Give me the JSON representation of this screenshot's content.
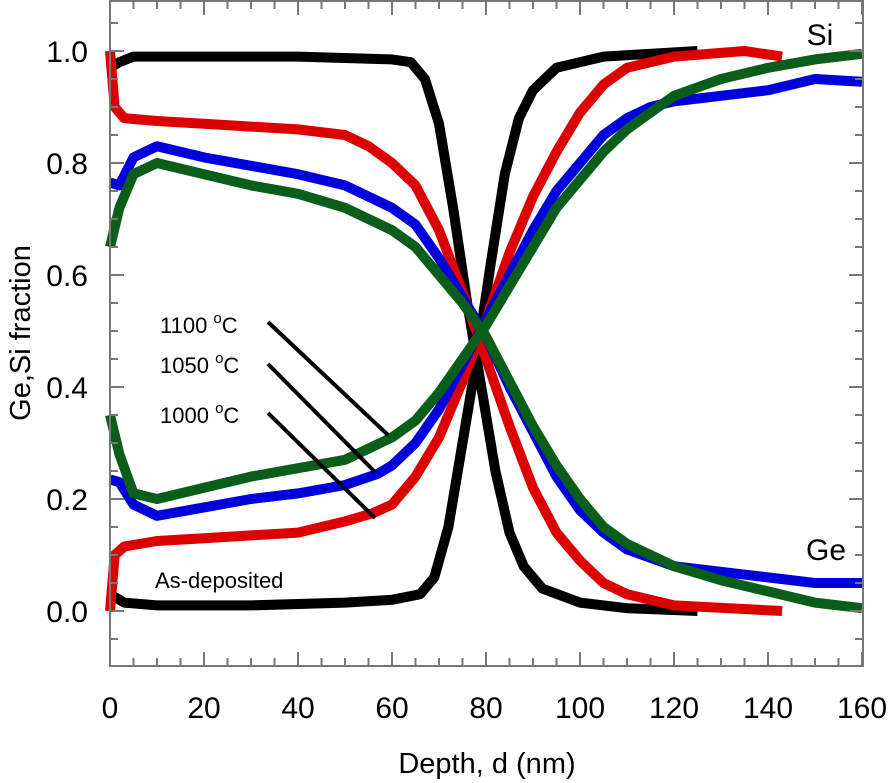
{
  "chart_data": {
    "type": "line",
    "title": "",
    "xlabel": "Depth, d (nm)",
    "ylabel": "Ge,Si fraction",
    "xlim": [
      0,
      160
    ],
    "ylim": [
      -0.1,
      1.1
    ],
    "xticks": [
      0,
      20,
      40,
      60,
      80,
      100,
      120,
      140,
      160
    ],
    "xtick_labels": [
      "0",
      "20",
      "40",
      "60",
      "80",
      "100",
      "120",
      "140",
      "160"
    ],
    "yticks": [
      0.0,
      0.2,
      0.4,
      0.6,
      0.8,
      1.0
    ],
    "ytick_labels": [
      "0.0",
      "0.2",
      "0.4",
      "0.6",
      "0.8",
      "1.0"
    ],
    "grid": false,
    "series": [
      {
        "name": "As-deposited Ge",
        "color": "#000000",
        "x": [
          0,
          2,
          5,
          20,
          40,
          60,
          64,
          67,
          70,
          73,
          76,
          79,
          82,
          85,
          88,
          92,
          100,
          110,
          125
        ],
        "y": [
          0.97,
          0.98,
          0.99,
          0.99,
          0.99,
          0.985,
          0.98,
          0.95,
          0.87,
          0.72,
          0.55,
          0.4,
          0.25,
          0.14,
          0.08,
          0.04,
          0.015,
          0.005,
          0.0
        ]
      },
      {
        "name": "As-deposited Si",
        "color": "#000000",
        "x": [
          0,
          3,
          10,
          30,
          50,
          60,
          66,
          69,
          72,
          75,
          78,
          81,
          84,
          87,
          90,
          95,
          105,
          125
        ],
        "y": [
          0.03,
          0.015,
          0.01,
          0.01,
          0.015,
          0.02,
          0.03,
          0.06,
          0.15,
          0.3,
          0.45,
          0.62,
          0.78,
          0.88,
          0.93,
          0.97,
          0.99,
          1.0
        ]
      },
      {
        "name": "1000 °C Ge",
        "color": "#dd0000",
        "x": [
          0,
          1,
          3,
          10,
          20,
          30,
          40,
          50,
          55,
          60,
          65,
          70,
          75,
          80,
          85,
          90,
          95,
          100,
          105,
          110,
          120,
          143
        ],
        "y": [
          1.0,
          0.9,
          0.88,
          0.875,
          0.87,
          0.865,
          0.86,
          0.85,
          0.83,
          0.8,
          0.76,
          0.68,
          0.57,
          0.45,
          0.33,
          0.22,
          0.14,
          0.09,
          0.05,
          0.03,
          0.01,
          0.0
        ]
      },
      {
        "name": "1000 °C Si",
        "color": "#dd0000",
        "x": [
          0,
          1,
          3,
          10,
          20,
          30,
          40,
          50,
          56,
          60,
          65,
          70,
          75,
          80,
          85,
          90,
          95,
          100,
          105,
          110,
          120,
          135,
          143
        ],
        "y": [
          0.0,
          0.1,
          0.115,
          0.125,
          0.13,
          0.135,
          0.14,
          0.16,
          0.175,
          0.19,
          0.24,
          0.31,
          0.41,
          0.52,
          0.64,
          0.74,
          0.82,
          0.89,
          0.94,
          0.97,
          0.99,
          1.0,
          0.99
        ]
      },
      {
        "name": "1050 °C Ge",
        "color": "#0000dd",
        "x": [
          0,
          2,
          5,
          10,
          20,
          30,
          40,
          50,
          60,
          65,
          70,
          75,
          80,
          85,
          90,
          95,
          100,
          105,
          110,
          120,
          130,
          140,
          150,
          160
        ],
        "y": [
          0.765,
          0.76,
          0.81,
          0.83,
          0.81,
          0.795,
          0.78,
          0.76,
          0.72,
          0.69,
          0.63,
          0.56,
          0.49,
          0.4,
          0.32,
          0.24,
          0.18,
          0.14,
          0.11,
          0.08,
          0.07,
          0.06,
          0.05,
          0.05
        ]
      },
      {
        "name": "1050 °C Si",
        "color": "#0000dd",
        "x": [
          0,
          2,
          5,
          10,
          20,
          30,
          40,
          50,
          57,
          60,
          65,
          70,
          75,
          80,
          85,
          90,
          95,
          100,
          105,
          110,
          115,
          120,
          130,
          140,
          150,
          160
        ],
        "y": [
          0.235,
          0.23,
          0.19,
          0.17,
          0.185,
          0.2,
          0.21,
          0.225,
          0.245,
          0.26,
          0.3,
          0.36,
          0.44,
          0.52,
          0.6,
          0.68,
          0.75,
          0.8,
          0.85,
          0.88,
          0.9,
          0.91,
          0.92,
          0.93,
          0.95,
          0.945
        ]
      },
      {
        "name": "1100 °C Ge",
        "color": "#0a5e1a",
        "x": [
          0,
          2,
          5,
          10,
          20,
          30,
          40,
          50,
          60,
          65,
          70,
          75,
          80,
          85,
          90,
          95,
          100,
          105,
          110,
          120,
          130,
          140,
          150,
          160
        ],
        "y": [
          0.65,
          0.72,
          0.78,
          0.8,
          0.78,
          0.76,
          0.745,
          0.72,
          0.68,
          0.65,
          0.6,
          0.55,
          0.49,
          0.41,
          0.33,
          0.26,
          0.2,
          0.15,
          0.12,
          0.08,
          0.055,
          0.035,
          0.015,
          0.005
        ]
      },
      {
        "name": "1100 °C Si",
        "color": "#0a5e1a",
        "x": [
          0,
          2,
          5,
          10,
          20,
          30,
          40,
          50,
          60,
          65,
          70,
          75,
          80,
          85,
          90,
          95,
          100,
          105,
          110,
          115,
          120,
          130,
          140,
          150,
          160
        ],
        "y": [
          0.35,
          0.28,
          0.21,
          0.2,
          0.22,
          0.24,
          0.255,
          0.27,
          0.31,
          0.34,
          0.39,
          0.45,
          0.51,
          0.58,
          0.65,
          0.72,
          0.77,
          0.82,
          0.86,
          0.89,
          0.92,
          0.95,
          0.97,
          0.985,
          0.995
        ]
      }
    ],
    "annotations": {
      "si_label": "Si",
      "ge_label": "Ge",
      "as_deposited": "As-deposited",
      "temps": [
        {
          "temp": "1100 ",
          "sup": "o",
          "unit": "C"
        },
        {
          "temp": "1050 ",
          "sup": "o",
          "unit": "C"
        },
        {
          "temp": "1000 ",
          "sup": "o",
          "unit": "C"
        }
      ]
    }
  }
}
